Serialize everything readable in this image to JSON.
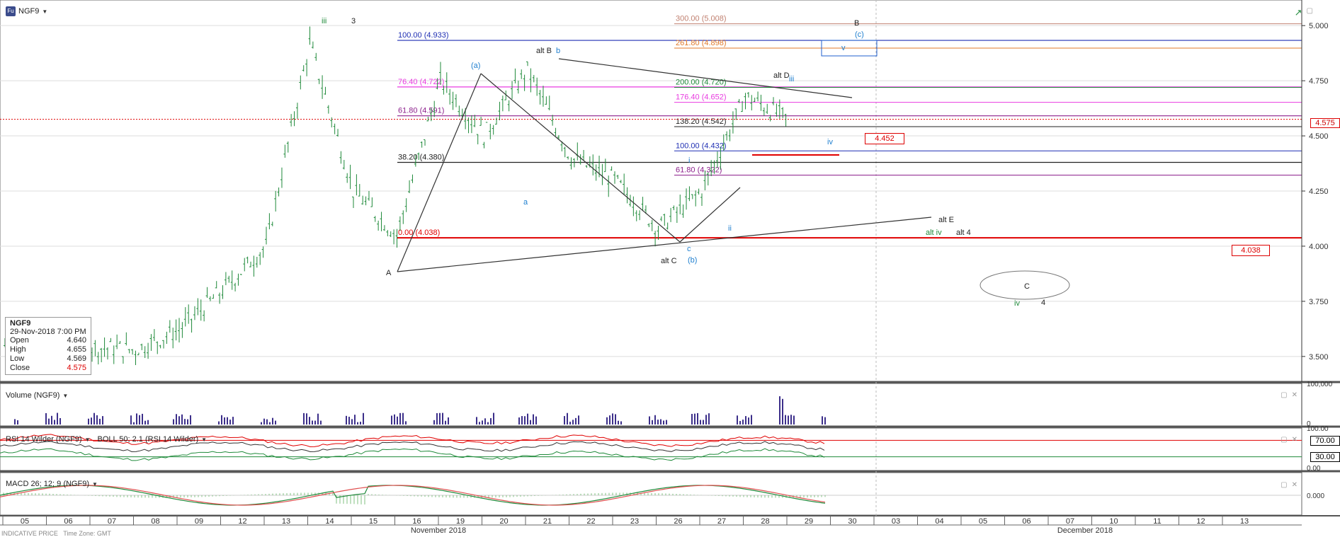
{
  "symbol": "NGF9",
  "symbol_badge": "Fu",
  "pane_titles": {
    "volume": "Volume (NGF9)",
    "rsi": "RSI 14 Wilder (NGF9)",
    "boll": "BOLL 50; 2.1 (RSI 14 Wilder)",
    "macd": "MACD 26; 12; 9 (NGF9)"
  },
  "ohlc_box": {
    "symbol": "NGF9",
    "datetime": "29-Nov-2018 7:00 PM",
    "rows": [
      {
        "label": "Open",
        "value": "4.640"
      },
      {
        "label": "High",
        "value": "4.655"
      },
      {
        "label": "Low",
        "value": "4.569"
      },
      {
        "label": "Close",
        "value": "4.575"
      }
    ]
  },
  "last_price": "4.575",
  "price_boxes": [
    "4.452",
    "4.038"
  ],
  "footer": {
    "indicative": "INDICATIVE PRICE",
    "timezone": "Time Zone: GMT",
    "month_labels": [
      "November 2018",
      "December 2018"
    ]
  },
  "colors": {
    "candle": "#1f8a3a",
    "red_line": "#e00000",
    "blue_line": "#1f2fb3",
    "magenta_line": "#e83be0",
    "purple_line": "#8c1f8c",
    "orange_line": "#e07a2a",
    "black_line": "#222222",
    "macd_line": "#1f8a3a",
    "signal_line": "#e05050",
    "volume_bar": "#3c2f8a"
  },
  "chart_data": {
    "type": "candlestick",
    "x_axis_labels": [
      "05",
      "06",
      "07",
      "08",
      "09",
      "12",
      "13",
      "14",
      "15",
      "16",
      "19",
      "20",
      "21",
      "22",
      "23",
      "26",
      "27",
      "28",
      "29",
      "30",
      "03",
      "04",
      "05",
      "06",
      "07",
      "10",
      "11",
      "12",
      "13"
    ],
    "y_axis": {
      "ticks": [
        "5.000",
        "4.750",
        "4.500",
        "4.250",
        "4.000",
        "3.750",
        "3.500"
      ],
      "ylim": [
        3.4,
        5.1
      ]
    },
    "close_path": [
      {
        "date": "05",
        "value": 3.55
      },
      {
        "date": "06",
        "value": 3.53
      },
      {
        "date": "07",
        "value": 3.54
      },
      {
        "date": "08",
        "value": 3.53
      },
      {
        "date": "09",
        "value": 3.62
      },
      {
        "date": "12",
        "value": 3.8
      },
      {
        "date": "13",
        "value": 4.0
      },
      {
        "date": "14",
        "value": 4.92
      },
      {
        "date": "15",
        "value": 4.25
      },
      {
        "date": "16",
        "value": 4.05
      },
      {
        "date": "19",
        "value": 4.75
      },
      {
        "date": "20",
        "value": 4.5
      },
      {
        "date": "21",
        "value": 4.8
      },
      {
        "date": "22",
        "value": 4.4
      },
      {
        "date": "23",
        "value": 4.3
      },
      {
        "date": "26",
        "value": 4.08
      },
      {
        "date": "27",
        "value": 4.25
      },
      {
        "date": "28",
        "value": 4.68
      },
      {
        "date": "29",
        "value": 4.575
      }
    ],
    "fib_levels_left": [
      {
        "label": "100.00 (4.933)",
        "value": 4.933
      },
      {
        "label": "76.40 (4.722)",
        "value": 4.722
      },
      {
        "label": "61.80 (4.591)",
        "value": 4.591
      },
      {
        "label": "38.20 (4.380)",
        "value": 4.38
      },
      {
        "label": "0.00 (4.038)",
        "value": 4.038
      }
    ],
    "fib_levels_right": [
      {
        "label": "300.00 (5.008)",
        "value": 5.008
      },
      {
        "label": "261.80 (4.898)",
        "value": 4.898
      },
      {
        "label": "200.00 (4.720)",
        "value": 4.72
      },
      {
        "label": "176.40 (4.652)",
        "value": 4.652
      },
      {
        "label": "138.20 (4.542)",
        "value": 4.542
      },
      {
        "label": "100.00 (4.432)",
        "value": 4.432
      },
      {
        "label": "61.80 (4.322)",
        "value": 4.322
      }
    ],
    "wave_labels": [
      "iii",
      "3",
      "A",
      "(a)",
      "alt B",
      "b",
      "a",
      "alt C",
      "c",
      "(b)",
      "i",
      "ii",
      "alt D",
      "iii",
      "iv",
      "B",
      "(c)",
      "v",
      "alt E",
      "alt iv",
      "alt 4",
      "C",
      "iv",
      "4"
    ],
    "rsi_ticks": [
      "100.00",
      "70.00",
      "30.00",
      "0.00"
    ],
    "volume_ticks": [
      "100,000",
      "0"
    ],
    "macd_ticks": [
      "0.000"
    ]
  }
}
